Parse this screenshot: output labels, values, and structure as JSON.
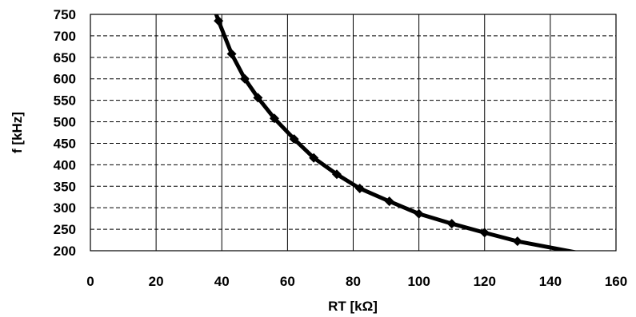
{
  "chart_data": {
    "type": "line",
    "title": "",
    "xlabel": "RT [kΩ]",
    "ylabel": "f [kHz]",
    "xlim": [
      0,
      160
    ],
    "ylim": [
      200,
      750
    ],
    "xticks": [
      0,
      20,
      40,
      60,
      80,
      100,
      120,
      140,
      160
    ],
    "yticks": [
      200,
      250,
      300,
      350,
      400,
      450,
      500,
      550,
      600,
      650,
      700,
      750
    ],
    "grid": true,
    "legend": "none",
    "series_color": "#000000",
    "series": [
      {
        "x": [
          39,
          43,
          47,
          51,
          56,
          62,
          68,
          75,
          82,
          91,
          100,
          110,
          120,
          130,
          150
        ],
        "y": [
          735,
          658,
          600,
          556,
          508,
          460,
          416,
          378,
          345,
          315,
          286,
          263,
          242,
          222,
          193
        ],
        "markers": [
          true,
          true,
          true,
          true,
          true,
          true,
          true,
          true,
          true,
          true,
          true,
          true,
          true,
          true,
          false
        ]
      }
    ],
    "curve_extension": {
      "x": [
        36,
        39
      ],
      "y": [
        800,
        735
      ]
    }
  }
}
